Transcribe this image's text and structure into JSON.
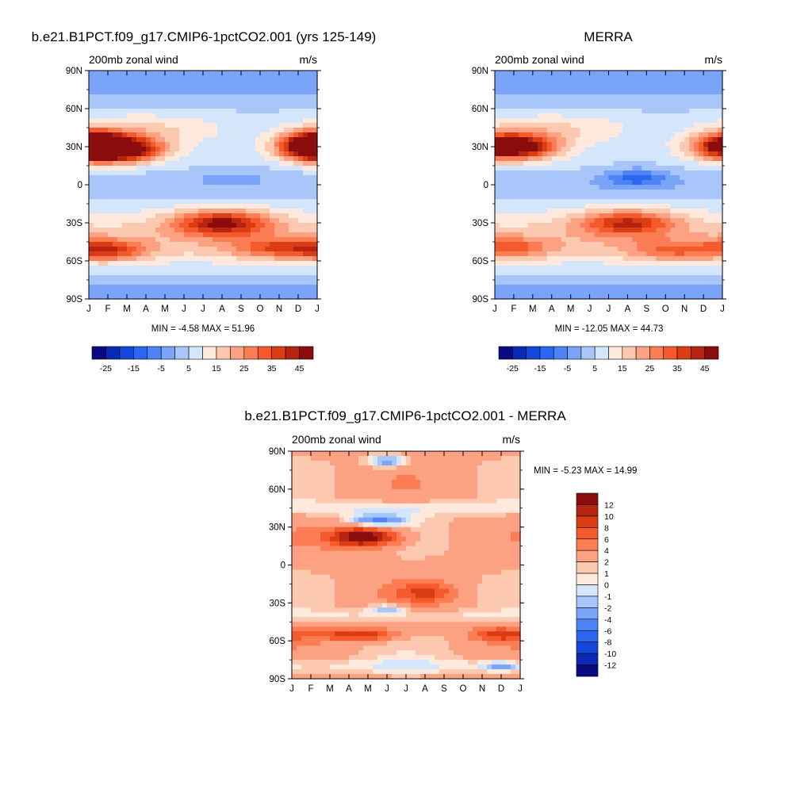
{
  "panels": [
    {
      "id": "model",
      "title": "b.e21.B1PCT.f09_g17.CMIP6-1pctCO2.001 (yrs 125-149)",
      "left_label": "200mb zonal wind",
      "right_label": "m/s",
      "minmax": "MIN =  -4.58 MAX =  51.96"
    },
    {
      "id": "obs",
      "title": "MERRA",
      "left_label": "200mb zonal wind",
      "right_label": "m/s",
      "minmax": "MIN = -12.05 MAX =  44.73"
    },
    {
      "id": "diff",
      "title": "b.e21.B1PCT.f09_g17.CMIP6-1pctCO2.001 - MERRA",
      "left_label": "200mb zonal wind",
      "right_label": "m/s",
      "minmax": "MIN =  -5.23 MAX =  14.99"
    }
  ],
  "chart_data": [
    {
      "type": "heatmap",
      "title": "b.e21.B1PCT.f09_g17.CMIP6-1pctCO2.001 (yrs 125-149)",
      "subtitle": "200mb zonal wind",
      "units": "m/s",
      "x_ticks": [
        "J",
        "F",
        "M",
        "A",
        "M",
        "J",
        "J",
        "A",
        "S",
        "O",
        "N",
        "D",
        "J"
      ],
      "y_ticks": [
        "90N",
        "60N",
        "30N",
        "0",
        "30S",
        "60S",
        "90S"
      ],
      "ylim": [
        -90,
        90
      ],
      "min": -4.58,
      "max": 51.96,
      "levels": [
        -30,
        -25,
        -20,
        -15,
        -10,
        -5,
        0,
        5,
        10,
        15,
        20,
        25,
        30,
        35,
        40,
        45,
        50
      ],
      "colorbar_labels": [
        "-25",
        "-15",
        "-5",
        "5",
        "15",
        "25",
        "35",
        "45"
      ],
      "colorbar_orientation": "horizontal",
      "features": [
        {
          "lat": 28,
          "month": 2.0,
          "value": 50,
          "lat_spread": 10,
          "month_spread": 2.0
        },
        {
          "lat": 28,
          "month": 12.0,
          "value": 46,
          "lat_spread": 10,
          "month_spread": 1.8
        },
        {
          "lat": 33,
          "month": 0.0,
          "value": 46,
          "lat_spread": 10,
          "month_spread": 1.8
        },
        {
          "lat": -30,
          "month": 7.0,
          "value": 48,
          "lat_spread": 10,
          "month_spread": 2.5
        },
        {
          "lat": -52,
          "month": 1.0,
          "value": 38,
          "lat_spread": 8,
          "month_spread": 2.0
        },
        {
          "lat": -50,
          "month": 10.0,
          "value": 36,
          "lat_spread": 8,
          "month_spread": 2.5
        },
        {
          "lat": 5,
          "month": 7.5,
          "value": -2,
          "lat_spread": 8,
          "month_spread": 2.0
        }
      ]
    },
    {
      "type": "heatmap",
      "title": "MERRA",
      "subtitle": "200mb zonal wind",
      "units": "m/s",
      "x_ticks": [
        "J",
        "F",
        "M",
        "A",
        "M",
        "J",
        "J",
        "A",
        "S",
        "O",
        "N",
        "D",
        "J"
      ],
      "y_ticks": [
        "90N",
        "60N",
        "30N",
        "0",
        "30S",
        "60S",
        "90S"
      ],
      "ylim": [
        -90,
        90
      ],
      "min": -12.05,
      "max": 44.73,
      "levels": [
        -30,
        -25,
        -20,
        -15,
        -10,
        -5,
        0,
        5,
        10,
        15,
        20,
        25,
        30,
        35,
        40,
        45,
        50
      ],
      "colorbar_labels": [
        "-25",
        "-15",
        "-5",
        "5",
        "15",
        "25",
        "35",
        "45"
      ],
      "colorbar_orientation": "horizontal",
      "features": [
        {
          "lat": 30,
          "month": 1.5,
          "value": 42,
          "lat_spread": 10,
          "month_spread": 2.0
        },
        {
          "lat": 30,
          "month": 12.0,
          "value": 40,
          "lat_spread": 10,
          "month_spread": 1.8
        },
        {
          "lat": -30,
          "month": 7.0,
          "value": 42,
          "lat_spread": 10,
          "month_spread": 2.5
        },
        {
          "lat": -50,
          "month": 1.0,
          "value": 32,
          "lat_spread": 8,
          "month_spread": 2.0
        },
        {
          "lat": -52,
          "month": 9.5,
          "value": 32,
          "lat_spread": 8,
          "month_spread": 2.5
        },
        {
          "lat": 5,
          "month": 7.5,
          "value": -12,
          "lat_spread": 8,
          "month_spread": 1.8
        }
      ]
    },
    {
      "type": "heatmap",
      "title": "b.e21.B1PCT.f09_g17.CMIP6-1pctCO2.001 - MERRA",
      "subtitle": "200mb zonal wind",
      "units": "m/s",
      "x_ticks": [
        "J",
        "F",
        "M",
        "A",
        "M",
        "J",
        "J",
        "A",
        "S",
        "O",
        "N",
        "D",
        "J"
      ],
      "y_ticks": [
        "90N",
        "60N",
        "30N",
        "0",
        "30S",
        "60S",
        "90S"
      ],
      "ylim": [
        -90,
        90
      ],
      "min": -5.23,
      "max": 14.99,
      "levels": [
        -14,
        -12,
        -10,
        -8,
        -6,
        -4,
        -2,
        -1,
        0,
        1,
        2,
        4,
        6,
        8,
        10,
        12,
        14
      ],
      "colorbar_labels": [
        "12",
        "10",
        "8",
        "6",
        "4",
        "2",
        "1",
        "0",
        "-1",
        "-2",
        "-4",
        "-6",
        "-8",
        "-10",
        "-12"
      ],
      "colorbar_orientation": "vertical",
      "features": [
        {
          "lat": 22,
          "month": 3.8,
          "value": 14,
          "lat_spread": 8,
          "month_spread": 1.8
        },
        {
          "lat": -22,
          "month": 7.0,
          "value": 9,
          "lat_spread": 8,
          "month_spread": 1.5
        },
        {
          "lat": -55,
          "month": 3.5,
          "value": 10,
          "lat_spread": 5,
          "month_spread": 2.0
        },
        {
          "lat": -55,
          "month": 11.0,
          "value": 10,
          "lat_spread": 5,
          "month_spread": 1.5
        },
        {
          "lat": 35,
          "month": 4.5,
          "value": -5,
          "lat_spread": 5,
          "month_spread": 1.5
        },
        {
          "lat": 82,
          "month": 5.0,
          "value": -3,
          "lat_spread": 5,
          "month_spread": 1.0
        },
        {
          "lat": -35,
          "month": 5.0,
          "value": -2,
          "lat_spread": 4,
          "month_spread": 1.0
        },
        {
          "lat": -80,
          "month": 11.0,
          "value": -3,
          "lat_spread": 4,
          "month_spread": 1.0
        },
        {
          "lat": 60,
          "month": 6.0,
          "value": 4,
          "lat_spread": 10,
          "month_spread": 3.0
        }
      ]
    }
  ],
  "colors": {
    "palette": [
      "#0a0a82",
      "#0a2ab4",
      "#1446dc",
      "#2a66f0",
      "#4c84f6",
      "#7aa4f8",
      "#a8c6fa",
      "#d4e6fc",
      "#ffe8dc",
      "#fcc8b0",
      "#fca282",
      "#fc7c54",
      "#f45a2c",
      "#dc3c14",
      "#b42410",
      "#8a0c0c"
    ]
  }
}
